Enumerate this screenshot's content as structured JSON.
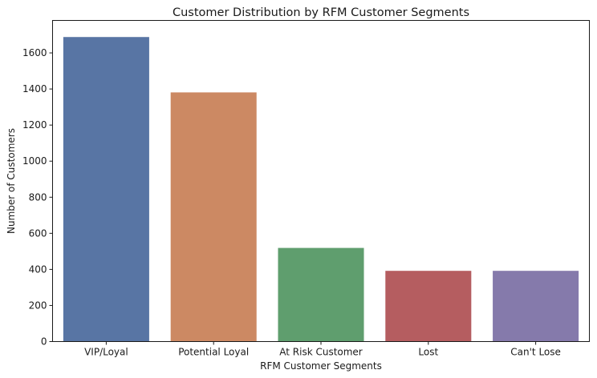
{
  "chart_data": {
    "type": "bar",
    "title": "Customer Distribution by RFM Customer Segments",
    "xlabel": "RFM Customer Segments",
    "ylabel": "Number of Customers",
    "categories": [
      "VIP/Loyal",
      "Potential Loyal",
      "At Risk Customer",
      "Lost",
      "Can't Lose"
    ],
    "values": [
      1688,
      1381,
      519,
      392,
      392
    ],
    "colors": [
      "#5875a4",
      "#cc8963",
      "#5f9e6e",
      "#b55d60",
      "#857aab"
    ],
    "ylim": [
      0,
      1780
    ],
    "yticks": [
      0,
      200,
      400,
      600,
      800,
      1000,
      1200,
      1400,
      1600
    ],
    "grid": false,
    "legend": "none"
  }
}
